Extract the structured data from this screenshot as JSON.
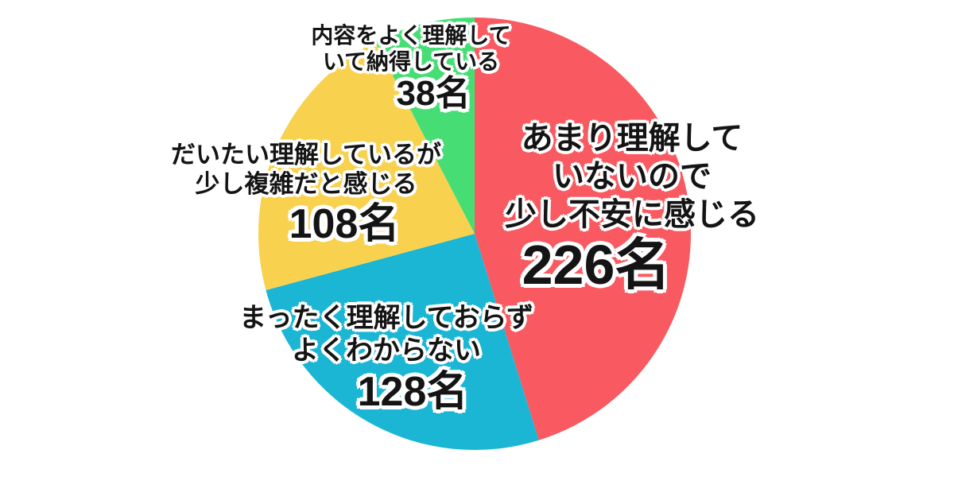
{
  "chart_data": {
    "type": "pie",
    "unit": "名",
    "start_angle_deg": 0,
    "direction": "clockwise",
    "center": [
      597,
      294
    ],
    "radius": 272,
    "background_color": "#ffffff",
    "text_color": "#141414",
    "outline_color": "#ffffff",
    "slices": [
      {
        "id": "not-understood-anxious",
        "label": "あまり理解していないので少し不安に感じる",
        "label_lines": [
          "あまり理解して",
          "いないので",
          "少し不安に感じる"
        ],
        "value": 226,
        "value_label": "226名",
        "color": "#F95A61"
      },
      {
        "id": "not-understood-at-all",
        "label": "まったく理解しておらずよくわからない",
        "label_lines": [
          "まったく理解しておらず",
          "よくわからない"
        ],
        "value": 128,
        "value_label": "128名",
        "color": "#1AB6D4"
      },
      {
        "id": "mostly-understood-complex",
        "label": "だいたい理解しているが少し複雑だと感じる",
        "label_lines": [
          "だいたい理解しているが",
          "少し複雑だと感じる"
        ],
        "value": 108,
        "value_label": "108名",
        "color": "#F8D24E"
      },
      {
        "id": "well-understood-satisfied",
        "label": "内容をよく理解していて納得している",
        "label_lines": [
          "内容をよく理解して",
          "いて納得している"
        ],
        "value": 38,
        "value_label": "38名",
        "color": "#46DE74"
      }
    ]
  }
}
